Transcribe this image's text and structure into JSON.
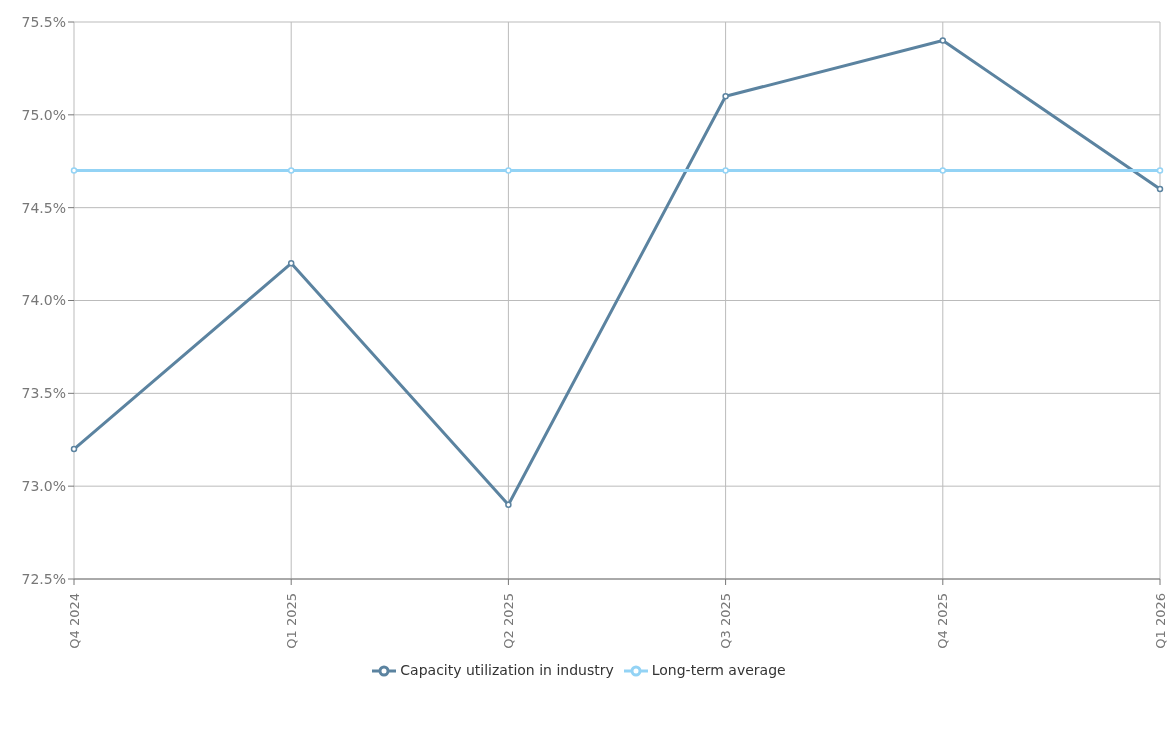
{
  "chart_data": {
    "type": "line",
    "categories": [
      "Q4 2024",
      "Q1 2025",
      "Q2 2025",
      "Q3 2025",
      "Q4 2025",
      "Q1 2026"
    ],
    "series": [
      {
        "name": "Capacity utilization in industry",
        "color": "#5b83a0",
        "values": [
          73.2,
          74.2,
          72.9,
          75.1,
          75.4,
          74.6
        ]
      },
      {
        "name": "Long-term average",
        "color": "#93d3f5",
        "values": [
          74.7,
          74.7,
          74.7,
          74.7,
          74.7,
          74.7
        ]
      }
    ],
    "ylim": [
      72.5,
      75.5
    ],
    "yticks": [
      {
        "value": 72.5,
        "label": "72.5%"
      },
      {
        "value": 73,
        "label": "73.0%"
      },
      {
        "value": 73.5,
        "label": "73.5%"
      },
      {
        "value": 74,
        "label": "74.0%"
      },
      {
        "value": 74.5,
        "label": "74.5%"
      },
      {
        "value": 75,
        "label": "75.0%"
      },
      {
        "value": 75.5,
        "label": "75.5%"
      }
    ],
    "grid": true,
    "legend": "bottom",
    "marker": "circle",
    "line_style": "solid"
  }
}
